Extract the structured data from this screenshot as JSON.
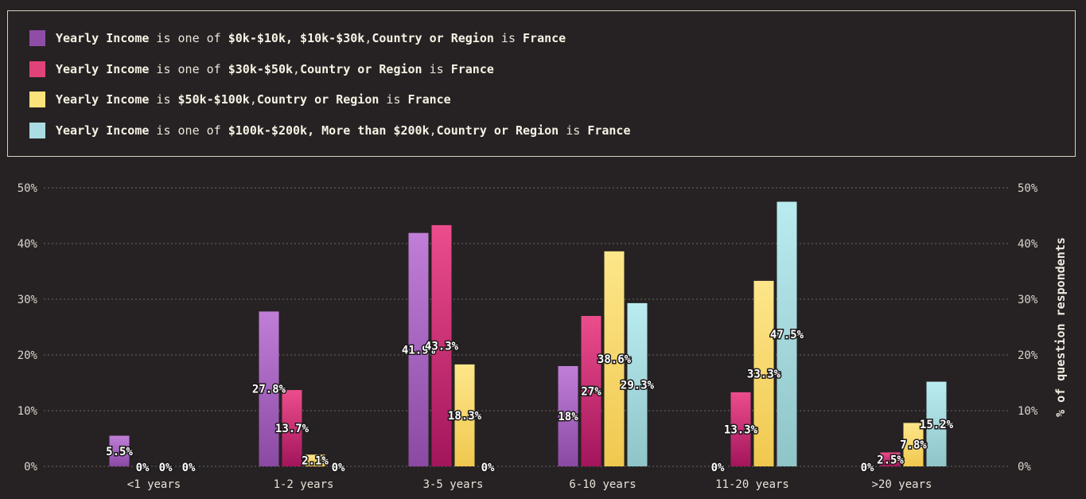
{
  "legend": [
    {
      "parts": [
        {
          "t": "Yearly Income",
          "s": "b"
        },
        {
          "t": " is one of ",
          "s": "n"
        },
        {
          "t": "$0k-$10k, $10k-$30k",
          "s": "b"
        },
        {
          "t": ",",
          "s": "n"
        },
        {
          "t": "Country or Region",
          "s": "b"
        },
        {
          "t": " is ",
          "s": "n"
        },
        {
          "t": "France",
          "s": "b"
        }
      ],
      "color": "#8e4ea8"
    },
    {
      "parts": [
        {
          "t": "Yearly Income",
          "s": "b"
        },
        {
          "t": " is one of ",
          "s": "n"
        },
        {
          "t": "$30k-$50k",
          "s": "b"
        },
        {
          "t": ",",
          "s": "n"
        },
        {
          "t": "Country or Region",
          "s": "b"
        },
        {
          "t": " is ",
          "s": "n"
        },
        {
          "t": "France",
          "s": "b"
        }
      ],
      "color": "#e0437a"
    },
    {
      "parts": [
        {
          "t": "Yearly Income",
          "s": "b"
        },
        {
          "t": " is ",
          "s": "n"
        },
        {
          "t": "$50k-$100k",
          "s": "b"
        },
        {
          "t": ",",
          "s": "n"
        },
        {
          "t": "Country or Region",
          "s": "b"
        },
        {
          "t": " is ",
          "s": "n"
        },
        {
          "t": "France",
          "s": "b"
        }
      ],
      "color": "#fbe27a"
    },
    {
      "parts": [
        {
          "t": "Yearly Income",
          "s": "b"
        },
        {
          "t": " is one of ",
          "s": "n"
        },
        {
          "t": "$100k-$200k, More than $200k",
          "s": "b"
        },
        {
          "t": ",",
          "s": "n"
        },
        {
          "t": "Country or Region",
          "s": "b"
        },
        {
          "t": " is ",
          "s": "n"
        },
        {
          "t": "France",
          "s": "b"
        }
      ],
      "color": "#a9dde3"
    }
  ],
  "chart_data": {
    "type": "bar",
    "categories": [
      "<1 years",
      "1-2 years",
      "3-5 years",
      "6-10 years",
      "11-20 years",
      ">20 years"
    ],
    "series": [
      {
        "values": [
          5.5,
          27.8,
          41.9,
          18,
          0,
          0
        ],
        "labels": [
          "5.5%",
          "27.8%",
          "41.9%",
          "18%",
          "0%",
          "0%"
        ],
        "top": "#c07ed8",
        "bottom": "#8a4aa4"
      },
      {
        "values": [
          0,
          13.7,
          43.3,
          27,
          13.3,
          2.5
        ],
        "labels": [
          "0%",
          "13.7%",
          "43.3%",
          "27%",
          "13.3%",
          "2.5%"
        ],
        "top": "#ec4d8c",
        "bottom": "#a3155c"
      },
      {
        "values": [
          0,
          2.1,
          18.3,
          38.6,
          33.3,
          7.8
        ],
        "labels": [
          "0%",
          "2.1%",
          "18.3%",
          "38.6%",
          "33.3%",
          "7.8%"
        ],
        "top": "#fde68a",
        "bottom": "#f0c84f"
      },
      {
        "values": [
          0,
          0,
          0,
          29.3,
          47.5,
          15.2
        ],
        "labels": [
          "0%",
          "0%",
          "0%",
          "29.3%",
          "47.5%",
          "15.2%"
        ],
        "top": "#b9ecf0",
        "bottom": "#8fc4c8"
      }
    ],
    "yticks": [
      "0%",
      "10%",
      "20%",
      "30%",
      "40%",
      "50%"
    ],
    "ylim": [
      0,
      50
    ],
    "ylabel": "% of question respondents",
    "grid": true,
    "legend_position": "top"
  }
}
